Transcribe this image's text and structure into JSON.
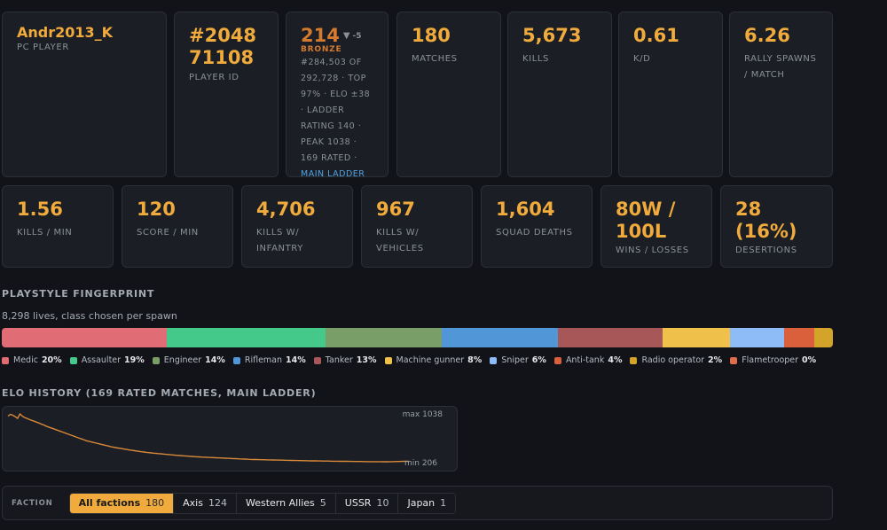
{
  "player": {
    "name": "Andr2013_K",
    "platform": "PC PLAYER"
  },
  "player_id": {
    "value_line1": "#2048",
    "value_line2": "71108",
    "label": "PLAYER ID"
  },
  "elo": {
    "value": "214",
    "arrow": "▼",
    "delta": "-5",
    "tier": "BRONZE",
    "detail": "#284,503 OF 292,728 · TOP 97% · ELO ±38 · LADDER RATING 140 · PEAK 1038 · 169 RATED ·",
    "link": "MAIN LADDER"
  },
  "top_stats": [
    {
      "value": "180",
      "label": "MATCHES"
    },
    {
      "value": "5,673",
      "label": "KILLS"
    },
    {
      "value": "0.61",
      "label": "K/D"
    },
    {
      "value": "6.26",
      "label": "RALLY SPAWNS / MATCH"
    }
  ],
  "bottom_stats": [
    {
      "value": "1.56",
      "label": "KILLS / MIN"
    },
    {
      "value": "120",
      "label": "SCORE / MIN"
    },
    {
      "value": "4,706",
      "label": "KILLS W/ INFANTRY"
    },
    {
      "value": "967",
      "label": "KILLS W/ VEHICLES"
    },
    {
      "value": "1,604",
      "label": "SQUAD DEATHS"
    },
    {
      "value": "80W / 100L",
      "label": "WINS / LOSSES"
    },
    {
      "value": "28 (16%)",
      "label": "DESERTIONS"
    }
  ],
  "playstyle": {
    "title": "PLAYSTYLE FINGERPRINT",
    "subtitle": "8,298 lives, class chosen per spawn",
    "classes": [
      {
        "name": "Medic",
        "pct": "20%",
        "share": 0.198,
        "color": "#e06c75"
      },
      {
        "name": "Assaulter",
        "pct": "19%",
        "share": 0.191,
        "color": "#44c98b"
      },
      {
        "name": "Engineer",
        "pct": "14%",
        "share": 0.14,
        "color": "#7a9e68"
      },
      {
        "name": "Rifleman",
        "pct": "14%",
        "share": 0.14,
        "color": "#5196d6"
      },
      {
        "name": "Tanker",
        "pct": "13%",
        "share": 0.126,
        "color": "#a85759"
      },
      {
        "name": "Machine gunner",
        "pct": "8%",
        "share": 0.081,
        "color": "#f0c14a"
      },
      {
        "name": "Sniper",
        "pct": "6%",
        "share": 0.065,
        "color": "#8ebcf7"
      },
      {
        "name": "Anti-tank",
        "pct": "4%",
        "share": 0.037,
        "color": "#d9603a"
      },
      {
        "name": "Radio operator",
        "pct": "2%",
        "share": 0.022,
        "color": "#d4a32a"
      },
      {
        "name": "Flametrooper",
        "pct": "0%",
        "share": 0.0,
        "color": "#e06c4a"
      }
    ]
  },
  "elo_history": {
    "title": "ELO HISTORY (169 RATED MATCHES, MAIN LADDER)",
    "max_label": "max 1038",
    "min_label": "min 206",
    "max": 1038,
    "min": 206,
    "line_color": "#d9893a",
    "points": [
      1000,
      1030,
      1015,
      990,
      960,
      1038,
      1000,
      975,
      960,
      940,
      925,
      910,
      895,
      880,
      860,
      845,
      825,
      810,
      795,
      780,
      765,
      750,
      735,
      720,
      705,
      690,
      675,
      660,
      645,
      630,
      615,
      600,
      585,
      570,
      560,
      550,
      540,
      530,
      520,
      510,
      500,
      490,
      480,
      470,
      460,
      452,
      445,
      440,
      432,
      425,
      418,
      410,
      404,
      398,
      392,
      386,
      380,
      375,
      370,
      365,
      360,
      356,
      352,
      348,
      344,
      340,
      336,
      332,
      328,
      324,
      320,
      317,
      314,
      311,
      308,
      305,
      302,
      299,
      296,
      293,
      290,
      288,
      286,
      284,
      282,
      280,
      278,
      276,
      274,
      272,
      270,
      268,
      266,
      264,
      262,
      260,
      258,
      256,
      254,
      252,
      250,
      248,
      246,
      245,
      244,
      243,
      242,
      241,
      240,
      239,
      238,
      237,
      236,
      235,
      234,
      233,
      232,
      231,
      230,
      229,
      228,
      227,
      226,
      226,
      225,
      224,
      223,
      222,
      222,
      221,
      220,
      220,
      219,
      218,
      218,
      217,
      216,
      216,
      215,
      214,
      214,
      213,
      213,
      212,
      212,
      211,
      211,
      210,
      210,
      209,
      209,
      208,
      208,
      208,
      207,
      207,
      207,
      206,
      206,
      206,
      207,
      208,
      209,
      210,
      211,
      212,
      213,
      214,
      214
    ]
  },
  "factions": {
    "label": "FACTION",
    "items": [
      {
        "name": "All factions",
        "count": "180",
        "active": true
      },
      {
        "name": "Axis",
        "count": "124"
      },
      {
        "name": "Western Allies",
        "count": "5"
      },
      {
        "name": "USSR",
        "count": "10"
      },
      {
        "name": "Japan",
        "count": "1"
      }
    ]
  }
}
